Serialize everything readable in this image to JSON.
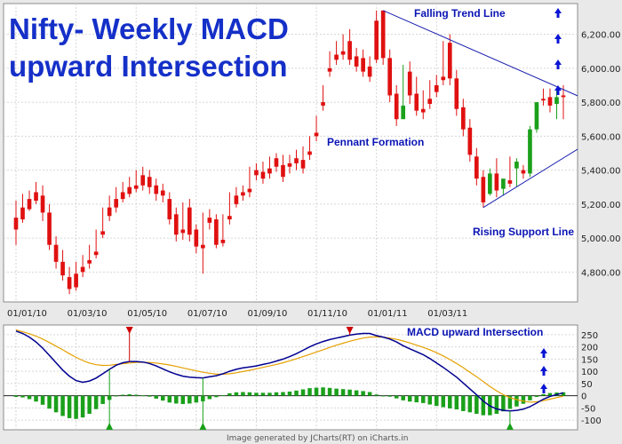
{
  "chart_data": {
    "type": "candlestick",
    "title_lines": [
      "Nifty- Weekly MACD",
      "upward Intersection"
    ],
    "price_axis": {
      "ylim": [
        4650,
        6360
      ],
      "ticks": [
        "4,800.00",
        "5,000.00",
        "5,200.00",
        "5,400.00",
        "5,600.00",
        "5,800.00",
        "6,000.00",
        "6,200.00"
      ],
      "tick_values": [
        4800,
        5000,
        5200,
        5400,
        5600,
        5800,
        6000,
        6200
      ]
    },
    "x_axis": {
      "tick_labels": [
        "01/01/10",
        "01/03/10",
        "01/05/10",
        "01/07/10",
        "01/09/10",
        "01/11/10",
        "01/01/11",
        "01/03/11"
      ],
      "tick_indices": [
        0,
        9,
        18,
        27,
        36,
        45,
        54,
        63
      ]
    },
    "candles": [
      [
        5120,
        5220,
        5050,
        4960
      ],
      [
        5180,
        5260,
        5110,
        5090
      ],
      [
        5230,
        5280,
        5170,
        5160
      ],
      [
        5270,
        5330,
        5220,
        5200
      ],
      [
        5250,
        5310,
        5150,
        5100
      ],
      [
        5150,
        5200,
        4960,
        4930
      ],
      [
        4960,
        5010,
        4860,
        4820
      ],
      [
        4860,
        4930,
        4780,
        4750
      ],
      [
        4770,
        4830,
        4700,
        4670
      ],
      [
        4790,
        4860,
        4710,
        4690
      ],
      [
        4830,
        4900,
        4800,
        4770
      ],
      [
        4870,
        4960,
        4850,
        4820
      ],
      [
        4920,
        5050,
        4900,
        4880
      ],
      [
        5040,
        5180,
        5020,
        5000
      ],
      [
        5180,
        5250,
        5130,
        5100
      ],
      [
        5230,
        5300,
        5180,
        5150
      ],
      [
        5270,
        5330,
        5230,
        5210
      ],
      [
        5300,
        5360,
        5260,
        5240
      ],
      [
        5310,
        5400,
        5290,
        5270
      ],
      [
        5370,
        5420,
        5310,
        5280
      ],
      [
        5360,
        5400,
        5300,
        5260
      ],
      [
        5310,
        5350,
        5260,
        5220
      ],
      [
        5280,
        5320,
        5250,
        5210
      ],
      [
        5230,
        5270,
        5110,
        5080
      ],
      [
        5140,
        5180,
        5020,
        4980
      ],
      [
        5050,
        5210,
        5030,
        4990
      ],
      [
        5180,
        5230,
        5020,
        4980
      ],
      [
        5050,
        5080,
        4950,
        4910
      ],
      [
        4960,
        5150,
        4940,
        4790
      ],
      [
        5120,
        5170,
        5090,
        5050
      ],
      [
        5110,
        5140,
        4960,
        4940
      ],
      [
        4990,
        5140,
        4970,
        4950
      ],
      [
        5130,
        5270,
        5110,
        5080
      ],
      [
        5250,
        5300,
        5200,
        5180
      ],
      [
        5270,
        5310,
        5250,
        5220
      ],
      [
        5290,
        5420,
        5270,
        5240
      ],
      [
        5400,
        5440,
        5370,
        5340
      ],
      [
        5390,
        5450,
        5350,
        5320
      ],
      [
        5410,
        5480,
        5380,
        5350
      ],
      [
        5470,
        5500,
        5420,
        5390
      ],
      [
        5430,
        5490,
        5360,
        5330
      ],
      [
        5440,
        5490,
        5420,
        5380
      ],
      [
        5470,
        5520,
        5440,
        5400
      ],
      [
        5460,
        5540,
        5410,
        5380
      ],
      [
        5510,
        5600,
        5490,
        5460
      ],
      [
        5620,
        5720,
        5600,
        5570
      ],
      [
        5800,
        5900,
        5780,
        5750
      ],
      [
        6000,
        6100,
        5980,
        5950
      ],
      [
        6080,
        6160,
        6050,
        6020
      ],
      [
        6100,
        6200,
        6080,
        6050
      ],
      [
        6160,
        6230,
        6050,
        6020
      ],
      [
        6070,
        6120,
        6010,
        5980
      ],
      [
        6060,
        6110,
        5980,
        5950
      ],
      [
        6010,
        6070,
        5950,
        5920
      ],
      [
        6280,
        6340,
        6050,
        6030
      ],
      [
        6340,
        6330,
        6060,
        6020
      ],
      [
        6060,
        6110,
        5840,
        5800
      ],
      [
        5850,
        5900,
        5700,
        5660
      ],
      [
        5700,
        6020,
        5780,
        5740
      ],
      [
        5980,
        6040,
        5840,
        5790
      ],
      [
        5850,
        5950,
        5750,
        5720
      ],
      [
        5760,
        5870,
        5740,
        5700
      ],
      [
        5820,
        5930,
        5790,
        5760
      ],
      [
        5900,
        5960,
        5860,
        5830
      ],
      [
        5950,
        6160,
        5930,
        5900
      ],
      [
        6150,
        6200,
        5940,
        5900
      ],
      [
        5940,
        5990,
        5760,
        5720
      ],
      [
        5770,
        5820,
        5640,
        5600
      ],
      [
        5650,
        5700,
        5490,
        5450
      ],
      [
        5480,
        5530,
        5350,
        5310
      ],
      [
        5360,
        5400,
        5210,
        5180
      ],
      [
        5260,
        5410,
        5380,
        5250
      ],
      [
        5380,
        5470,
        5280,
        5240
      ],
      [
        5290,
        5340,
        5350,
        5250
      ],
      [
        5340,
        5480,
        5320,
        5300
      ],
      [
        5410,
        5470,
        5450,
        5300
      ],
      [
        5400,
        5430,
        5380,
        5350
      ],
      [
        5380,
        5660,
        5640,
        5360
      ],
      [
        5640,
        5800,
        5800,
        5620
      ],
      [
        5820,
        5880,
        5810,
        5780
      ],
      [
        5830,
        5880,
        5780,
        5740
      ],
      [
        5790,
        5880,
        5830,
        5700
      ],
      [
        5840,
        5900,
        5830,
        5700
      ]
    ],
    "candle_fields": [
      "open",
      "high",
      "close",
      "low"
    ],
    "trend_lines": [
      {
        "name": "Falling Trend Line",
        "from": [
          55,
          6340
        ],
        "to": [
          84,
          5840
        ]
      },
      {
        "name": "Rising Support Line",
        "from": [
          70,
          5180
        ],
        "to": [
          84,
          5520
        ]
      }
    ],
    "annotations": {
      "falling": "Falling Trend Line",
      "pennant": "Pennant Formation",
      "rising": "Rising Support Line",
      "macd_label": "MACD upward Intersection"
    },
    "macd_axis": {
      "ylim": [
        -125,
        275
      ],
      "ticks": [
        "250",
        "200",
        "150",
        "100",
        "50",
        "0",
        "-50",
        "-100"
      ],
      "tick_values": [
        250,
        200,
        150,
        100,
        50,
        0,
        -50,
        -100
      ]
    },
    "macd": [
      265,
      255,
      240,
      220,
      195,
      165,
      135,
      105,
      80,
      62,
      55,
      60,
      72,
      90,
      108,
      125,
      135,
      140,
      140,
      138,
      132,
      122,
      110,
      98,
      88,
      80,
      76,
      74,
      73,
      78,
      82,
      90,
      100,
      108,
      114,
      118,
      122,
      128,
      134,
      142,
      150,
      160,
      172,
      186,
      200,
      212,
      222,
      230,
      236,
      242,
      248,
      252,
      255,
      255,
      246,
      240,
      232,
      220,
      205,
      192,
      180,
      168,
      152,
      134,
      116,
      96,
      76,
      52,
      28,
      4,
      -22,
      -42,
      -54,
      -60,
      -62,
      -60,
      -55,
      -45,
      -30,
      -14,
      -3,
      5,
      12
    ],
    "signal": [
      270,
      262,
      254,
      244,
      232,
      218,
      203,
      188,
      172,
      157,
      144,
      134,
      127,
      124,
      125,
      128,
      131,
      134,
      136,
      137,
      136,
      134,
      130,
      126,
      120,
      114,
      108,
      102,
      96,
      92,
      88,
      88,
      90,
      94,
      99,
      104,
      110,
      116,
      122,
      128,
      135,
      143,
      151,
      160,
      169,
      179,
      188,
      198,
      207,
      215,
      223,
      230,
      236,
      240,
      241,
      240,
      236,
      231,
      224,
      216,
      207,
      198,
      188,
      176,
      163,
      148,
      132,
      115,
      96,
      78,
      58,
      38,
      20,
      4,
      -8,
      -16,
      -22,
      -26,
      -25,
      -20,
      -14,
      -8,
      -2
    ],
    "histogram": [
      -5,
      -7,
      -14,
      -24,
      -37,
      -53,
      -68,
      -83,
      -92,
      -95,
      -89,
      -74,
      -55,
      -34,
      -17,
      -3,
      4,
      6,
      4,
      1,
      -4,
      -12,
      -20,
      -28,
      -32,
      -34,
      -32,
      -28,
      -23,
      -14,
      -6,
      2,
      10,
      14,
      15,
      14,
      12,
      12,
      12,
      14,
      15,
      17,
      21,
      26,
      31,
      33,
      34,
      32,
      29,
      27,
      25,
      22,
      19,
      15,
      5,
      0,
      -4,
      -11,
      -19,
      -24,
      -27,
      -30,
      -36,
      -42,
      -47,
      -52,
      -56,
      -63,
      -68,
      -74,
      -80,
      -80,
      -74,
      -64,
      -54,
      -44,
      -33,
      -19,
      -5,
      6,
      11,
      13,
      14
    ],
    "macd_color": "#000090",
    "signal_color": "#e6a000",
    "up_color": "#1aa01a",
    "down_color": "#e01010",
    "markers": {
      "peaks_red": [
        17,
        50
      ],
      "troughs_green": [
        14,
        28,
        74
      ]
    },
    "arrow_indicators": {
      "price_count": 4,
      "macd_count": 3
    }
  },
  "footer": {
    "credit": "Image generated by  JCharts(RT) on iCharts.in"
  }
}
